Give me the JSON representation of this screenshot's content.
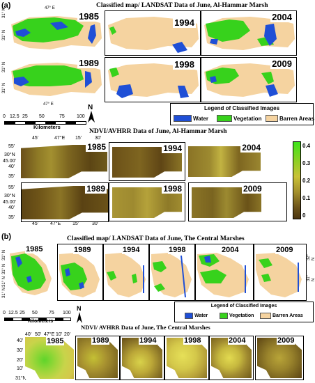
{
  "figure": {
    "panel_a_label": "(a)",
    "panel_b_label": "(b)"
  },
  "colors": {
    "water": "#1f4fd6",
    "vegetation": "#37d21c",
    "barren": "#f5d3a0",
    "ndvi_low": "#5c3d12",
    "ndvi_mid": "#9b8a2a",
    "ndvi_high": "#3ee41a"
  },
  "section_a": {
    "landsat_title": "Classified map/ LANDSAT Data of June, Al-Hammar Marsh",
    "years": [
      "1985",
      "1994",
      "2004",
      "1989",
      "1998",
      "2009"
    ],
    "coords_top": "47° E",
    "coords_bottom": "47° E",
    "coords_left": [
      "31° N",
      "31° N",
      "31° N",
      "31° N"
    ],
    "scale_ticks": [
      "0",
      "12.5",
      "25",
      "50",
      "75",
      "100"
    ],
    "scale_unit": "Kilometers",
    "north": "N",
    "legend": {
      "title": "Legend of Classified Images",
      "items": [
        "Water",
        "Vegetation",
        "Barren Areas"
      ]
    },
    "ndvi_title": "NDVI/AVHRR Data of June, Al-Hammar Marsh",
    "ndvi_years": [
      "1985",
      "1994",
      "2004",
      "1989",
      "1998",
      "2009"
    ],
    "ndvi_top_ticks": [
      "45'",
      "47°E",
      "15'",
      "30'"
    ],
    "ndvi_bottom_ticks": [
      "45'",
      "47°E",
      "15'",
      "30'"
    ],
    "ndvi_left_top": [
      "55'",
      "30°N",
      "45.00'",
      "40'",
      "35'"
    ],
    "ndvi_left_bottom": [
      "55'",
      "30°N",
      "45.00'",
      "40'",
      "35'"
    ],
    "colorbar_ticks": [
      "0.4",
      "0.3",
      "0.2",
      "0.1",
      "0"
    ]
  },
  "section_b": {
    "landsat_title": "Classified map/ LANDSAT Data of June, The Central Marshes",
    "years": [
      "1985",
      "1989",
      "1994",
      "1998",
      "2004",
      "2009"
    ],
    "coords_left": [
      "31° N",
      "31° N",
      "31° N",
      "31° N"
    ],
    "coords_right": [
      "32° N",
      "31° N"
    ],
    "scale_ticks": [
      "0",
      "12.5",
      "25",
      "50",
      "75",
      "100"
    ],
    "scale_unit": "Kilometers",
    "north": "N",
    "legend": {
      "title": "Legend of Classified Images",
      "items": [
        "Water",
        "Vegetation",
        "Barren Areas"
      ]
    },
    "ndvi_title": "NDVI/ AVHRR Data of June, The Central Marshes",
    "ndvi_years": [
      "1985",
      "1989",
      "1994",
      "1998",
      "2004",
      "2009"
    ],
    "ndvi_top_ticks": [
      "40'",
      "50'",
      "47°E",
      "10'",
      "20'"
    ],
    "ndvi_left": [
      "40'",
      "30'",
      "20'",
      "10'",
      "31°N"
    ]
  }
}
